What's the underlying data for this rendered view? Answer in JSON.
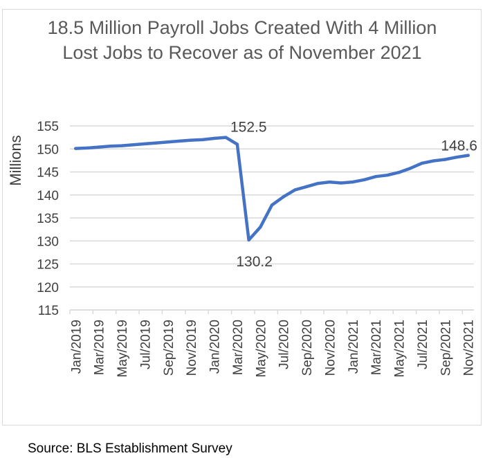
{
  "chart_data": {
    "type": "line",
    "title": "18.5 Million Payroll Jobs Created With 4 Million Lost Jobs to Recover as of November 2021",
    "ylabel": "Millions",
    "xlabel": "",
    "ylim": [
      115,
      155
    ],
    "yticks": [
      115,
      120,
      125,
      130,
      135,
      140,
      145,
      150,
      155
    ],
    "grid": true,
    "legend": "none",
    "line_color": "#4472c4",
    "x_tick_labels": [
      "Jan/2019",
      "Mar/2019",
      "May/2019",
      "Jul/2019",
      "Sep/2019",
      "Nov/2019",
      "Jan/2020",
      "Mar/2020",
      "May/2020",
      "Jul/2020",
      "Sep/2020",
      "Nov/2020",
      "Jan/2021",
      "Mar/2021",
      "May/2021",
      "Jul/2021",
      "Sep/2021",
      "Nov/2021"
    ],
    "x": [
      "Jan/2019",
      "Feb/2019",
      "Mar/2019",
      "Apr/2019",
      "May/2019",
      "Jun/2019",
      "Jul/2019",
      "Aug/2019",
      "Sep/2019",
      "Oct/2019",
      "Nov/2019",
      "Dec/2019",
      "Jan/2020",
      "Feb/2020",
      "Mar/2020",
      "Apr/2020",
      "May/2020",
      "Jun/2020",
      "Jul/2020",
      "Aug/2020",
      "Sep/2020",
      "Oct/2020",
      "Nov/2020",
      "Dec/2020",
      "Jan/2021",
      "Feb/2021",
      "Mar/2021",
      "Apr/2021",
      "May/2021",
      "Jun/2021",
      "Jul/2021",
      "Aug/2021",
      "Sep/2021",
      "Oct/2021",
      "Nov/2021"
    ],
    "series": [
      {
        "values": [
          150.1,
          150.2,
          150.4,
          150.6,
          150.7,
          150.9,
          151.1,
          151.3,
          151.5,
          151.7,
          151.9,
          152.0,
          152.3,
          152.5,
          151.0,
          130.2,
          133.0,
          137.8,
          139.6,
          141.1,
          141.8,
          142.5,
          142.8,
          142.6,
          142.8,
          143.3,
          144.0,
          144.3,
          144.9,
          145.8,
          146.9,
          147.4,
          147.7,
          148.2,
          148.6
        ]
      }
    ],
    "annotations": [
      {
        "text": "152.5",
        "x": "Feb/2020",
        "y": 152.5
      },
      {
        "text": "130.2",
        "x": "Apr/2020",
        "y": 130.2
      },
      {
        "text": "148.6",
        "x": "Nov/2021",
        "y": 148.6
      }
    ]
  },
  "source": "Source: BLS Establishment Survey"
}
